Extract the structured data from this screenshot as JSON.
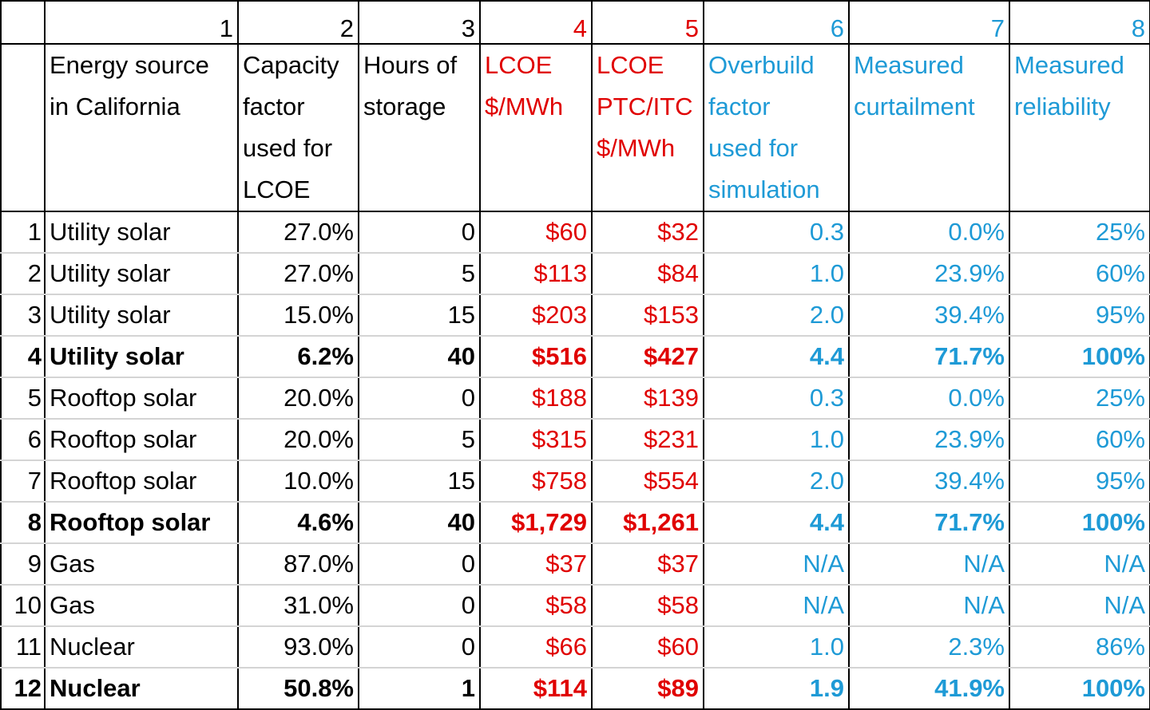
{
  "header": {
    "column_numbers": [
      "1",
      "2",
      "3",
      "4",
      "5",
      "6",
      "7",
      "8"
    ],
    "labels": [
      [
        "Energy source",
        "in California"
      ],
      [
        "Capacity",
        "factor",
        "used for",
        "LCOE"
      ],
      [
        "Hours of",
        "storage"
      ],
      [
        "LCOE",
        "$/MWh"
      ],
      [
        "LCOE",
        "PTC/ITC",
        "$/MWh"
      ],
      [
        "Overbuild",
        "factor",
        "used for",
        "simulation"
      ],
      [
        "Measured",
        "curtailment"
      ],
      [
        "Measured",
        "reliability"
      ]
    ]
  },
  "rows": [
    {
      "index": "1",
      "bold": false,
      "cells": [
        "Utility solar",
        "27.0%",
        "0",
        "$60",
        "$32",
        "0.3",
        "0.0%",
        "25%"
      ]
    },
    {
      "index": "2",
      "bold": false,
      "cells": [
        "Utility solar",
        "27.0%",
        "5",
        "$113",
        "$84",
        "1.0",
        "23.9%",
        "60%"
      ]
    },
    {
      "index": "3",
      "bold": false,
      "cells": [
        "Utility solar",
        "15.0%",
        "15",
        "$203",
        "$153",
        "2.0",
        "39.4%",
        "95%"
      ]
    },
    {
      "index": "4",
      "bold": true,
      "cells": [
        "Utility solar",
        "6.2%",
        "40",
        "$516",
        "$427",
        "4.4",
        "71.7%",
        "100%"
      ]
    },
    {
      "index": "5",
      "bold": false,
      "cells": [
        "Rooftop solar",
        "20.0%",
        "0",
        "$188",
        "$139",
        "0.3",
        "0.0%",
        "25%"
      ]
    },
    {
      "index": "6",
      "bold": false,
      "cells": [
        "Rooftop solar",
        "20.0%",
        "5",
        "$315",
        "$231",
        "1.0",
        "23.9%",
        "60%"
      ]
    },
    {
      "index": "7",
      "bold": false,
      "cells": [
        "Rooftop solar",
        "10.0%",
        "15",
        "$758",
        "$554",
        "2.0",
        "39.4%",
        "95%"
      ]
    },
    {
      "index": "8",
      "bold": true,
      "cells": [
        "Rooftop solar",
        "4.6%",
        "40",
        "$1,729",
        "$1,261",
        "4.4",
        "71.7%",
        "100%"
      ]
    },
    {
      "index": "9",
      "bold": false,
      "cells": [
        "Gas",
        "87.0%",
        "0",
        "$37",
        "$37",
        "N/A",
        "N/A",
        "N/A"
      ]
    },
    {
      "index": "10",
      "bold": false,
      "cells": [
        "Gas",
        "31.0%",
        "0",
        "$58",
        "$58",
        "N/A",
        "N/A",
        "N/A"
      ]
    },
    {
      "index": "11",
      "bold": false,
      "cells": [
        "Nuclear",
        "93.0%",
        "0",
        "$66",
        "$60",
        "1.0",
        "2.3%",
        "86%"
      ]
    },
    {
      "index": "12",
      "bold": true,
      "cells": [
        "Nuclear",
        "50.8%",
        "1",
        "$114",
        "$89",
        "1.9",
        "41.9%",
        "100%"
      ]
    }
  ]
}
